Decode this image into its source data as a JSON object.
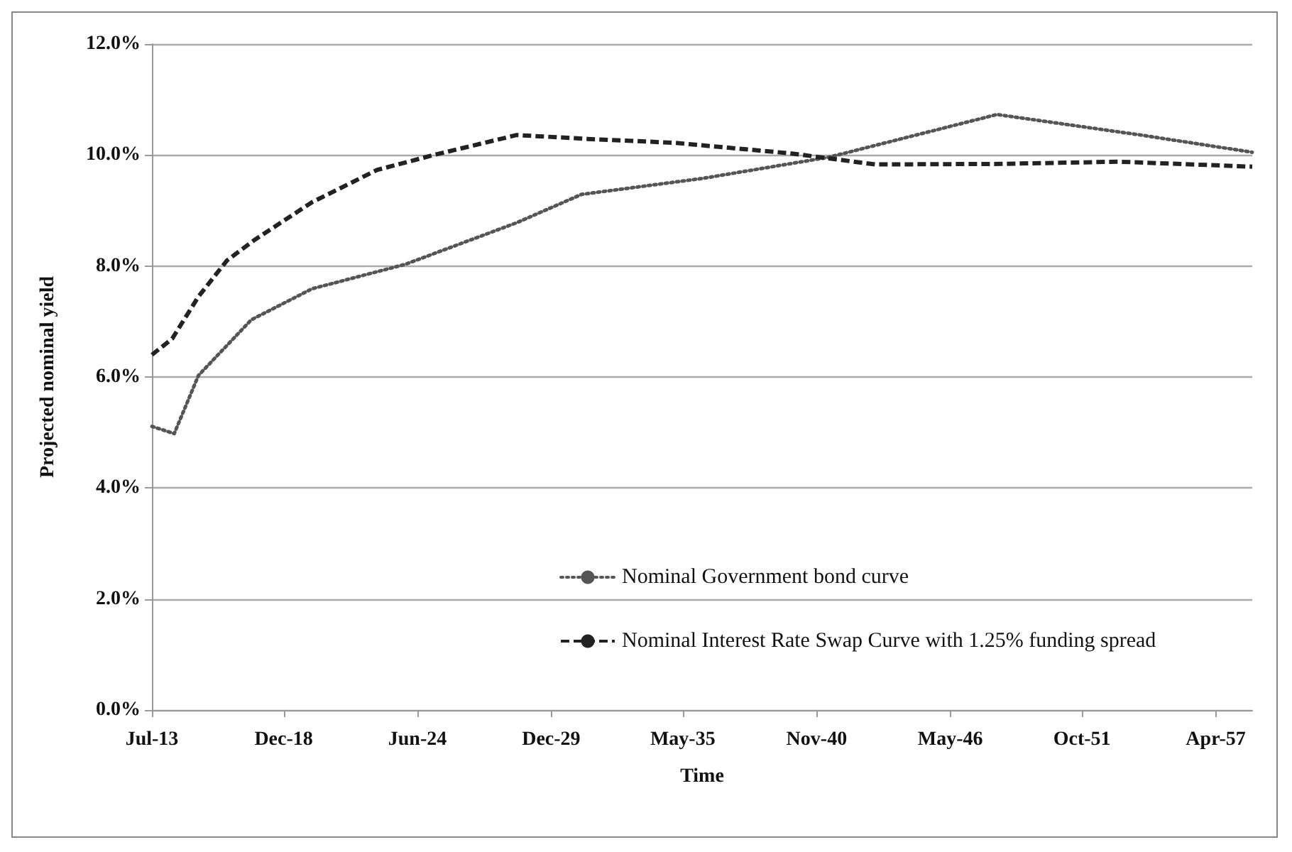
{
  "chart_data": {
    "type": "line",
    "xlabel": "Time",
    "ylabel": "Projected nominal yield",
    "xlim": [
      "2013-07",
      "2058-10"
    ],
    "xticks": [
      {
        "value": "2013-07",
        "label": "Jul-13"
      },
      {
        "value": "2018-12",
        "label": "Dec-18"
      },
      {
        "value": "2024-06",
        "label": "Jun-24"
      },
      {
        "value": "2029-12",
        "label": "Dec-29"
      },
      {
        "value": "2035-05",
        "label": "May-35"
      },
      {
        "value": "2040-11",
        "label": "Nov-40"
      },
      {
        "value": "2046-05",
        "label": "May-46"
      },
      {
        "value": "2051-10",
        "label": "Oct-51"
      },
      {
        "value": "2057-04",
        "label": "Apr-57"
      }
    ],
    "ylim": [
      0,
      12
    ],
    "yticks": [
      {
        "value": 0,
        "label": "0.0%"
      },
      {
        "value": 2,
        "label": "2.0%"
      },
      {
        "value": 4,
        "label": "4.0%"
      },
      {
        "value": 6,
        "label": "6.0%"
      },
      {
        "value": 8,
        "label": "8.0%"
      },
      {
        "value": 10,
        "label": "10.0%"
      },
      {
        "value": 12,
        "label": "12.0%"
      }
    ],
    "grid": "y",
    "legend": "bottom",
    "marker": "none",
    "series": [
      {
        "name": "Nominal Government bond curve",
        "color": "#555555",
        "line_style": "dotted",
        "x": [
          "2013-07",
          "2014-06",
          "2015-06",
          "2017-08",
          "2020-02",
          "2023-12",
          "2028-07",
          "2031-03",
          "2036-03",
          "2041-05",
          "2048-04",
          "2054-03",
          "2058-10"
        ],
        "values": [
          5.11,
          4.98,
          6.03,
          7.03,
          7.59,
          8.03,
          8.78,
          9.29,
          9.58,
          9.96,
          10.73,
          10.36,
          10.05
        ]
      },
      {
        "name": "Nominal Interest Rate Swap Curve with 1.25% funding spread",
        "color": "#222222",
        "line_style": "dashed",
        "x": [
          "2013-07",
          "2014-05",
          "2015-06",
          "2016-08",
          "2017-10",
          "2020-02",
          "2022-10",
          "2025-02",
          "2028-07",
          "2031-06",
          "2035-01",
          "2039-10",
          "2043-04",
          "2048-06",
          "2053-04",
          "2058-10"
        ],
        "values": [
          6.4,
          6.69,
          7.45,
          8.1,
          8.48,
          9.15,
          9.73,
          10.0,
          10.36,
          10.29,
          10.22,
          10.03,
          9.83,
          9.84,
          9.88,
          9.79
        ]
      }
    ]
  }
}
